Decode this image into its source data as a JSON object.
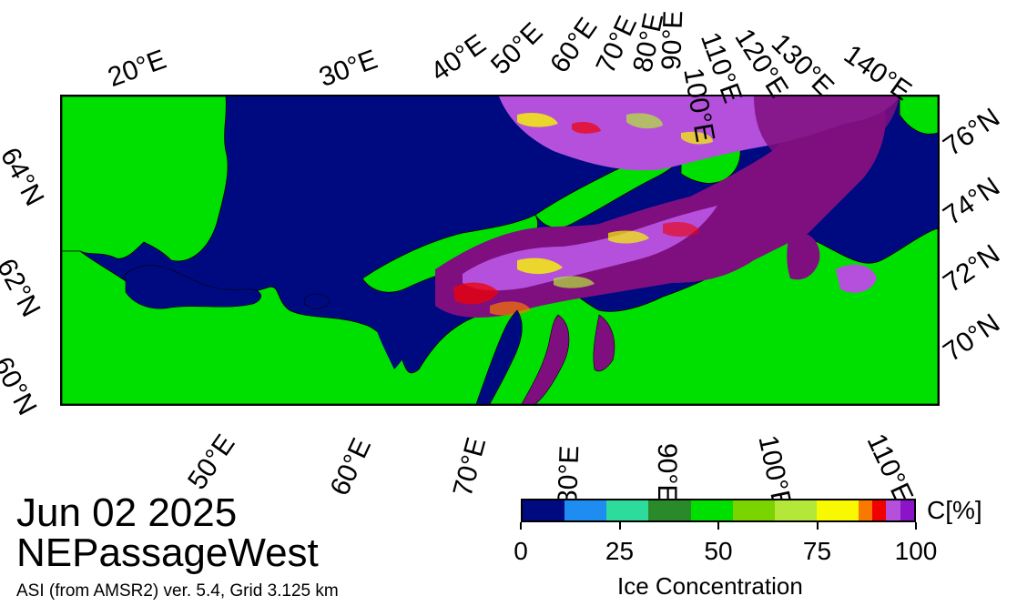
{
  "map": {
    "date": "Jun 02 2025",
    "region": "NEPassageWest",
    "source": "ASI (from AMSR2) ver. 5.4,  Grid 3.125 km",
    "colors": {
      "open_water": "#000a80",
      "land": "#00e000",
      "ice_high": "#7f0f7f",
      "coast": "#000000"
    },
    "top_lon_labels": [
      "20°E",
      "30°E",
      "40°E",
      "50°E",
      "60°E",
      "70°E",
      "80°E",
      "90°E",
      "100°E",
      "110°E",
      "120°E",
      "130°E",
      "140°E"
    ],
    "bottom_lon_labels": [
      "50°E",
      "60°E",
      "70°E",
      "80°E",
      "90°E",
      "100°E",
      "110°E"
    ],
    "left_lat_labels": [
      "64°N",
      "62°N",
      "60°N"
    ],
    "right_lat_labels": [
      "76°N",
      "74°N",
      "72°N",
      "70°N"
    ]
  },
  "colorbar": {
    "unit": "C[%]",
    "title": "Ice Concentration",
    "ticks": [
      "0",
      "25",
      "50",
      "75",
      "100"
    ],
    "colors": [
      "#000a80",
      "#000a80",
      "#1e8cf0",
      "#2ddc9c",
      "#2a8a2a",
      "#00e000",
      "#7ad400",
      "#b4e838",
      "#f8f800",
      "#f87800",
      "#f00000",
      "#b450dc",
      "#8c14c8"
    ],
    "widths": [
      10,
      0,
      10,
      10,
      10,
      10,
      10,
      10,
      10,
      3.3,
      3.3,
      3.3,
      3.3
    ]
  }
}
